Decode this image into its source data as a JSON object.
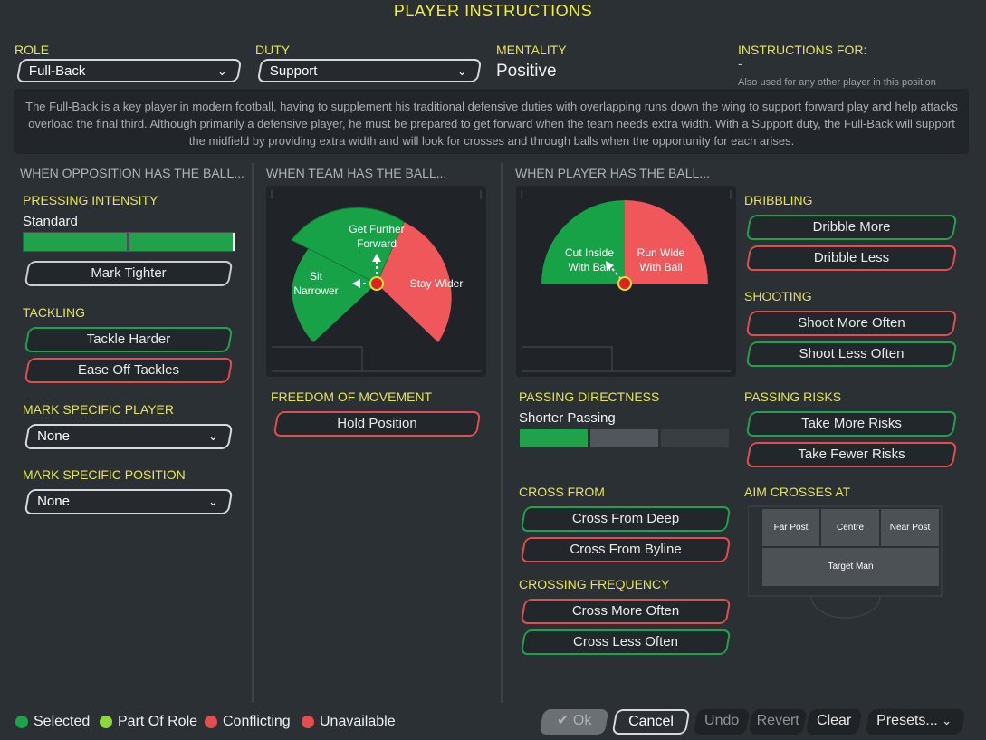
{
  "title": "PLAYER INSTRUCTIONS",
  "header": {
    "role_label": "ROLE",
    "role_value": "Full-Back",
    "duty_label": "DUTY",
    "duty_value": "Support",
    "mentality_label": "MENTALITY",
    "mentality_value": "Positive",
    "instructions_for_label": "INSTRUCTIONS FOR:",
    "instructions_for_value": "-",
    "instructions_for_note": "Also used for any other player in this position",
    "description": "The Full-Back is a key player in modern football, having to supplement his traditional defensive duties with overlapping runs down the wing to support forward play and help attacks overload the final third. Although primarily a defensive player, he must be prepared to get forward when the team needs extra width. With a Support duty, the Full-Back will support the midfield by providing extra width and will look for crosses and through balls when the opportunity for each arises."
  },
  "opposition": {
    "heading": "WHEN OPPOSITION HAS THE BALL...",
    "pressing_label": "PRESSING INTENSITY",
    "pressing_value": "Standard",
    "pressing_level": 1.0,
    "mark_tighter": "Mark Tighter",
    "tackling_label": "TACKLING",
    "tackle_harder": "Tackle Harder",
    "ease_off": "Ease Off Tackles",
    "mark_player_label": "MARK SPECIFIC PLAYER",
    "mark_player_value": "None",
    "mark_position_label": "MARK SPECIFIC POSITION",
    "mark_position_value": "None"
  },
  "team": {
    "heading": "WHEN TEAM HAS THE BALL...",
    "get_further": "Get Further Forward",
    "get_further_l1": "Get Further",
    "get_further_l2": "Forward",
    "sit_l1": "Sit",
    "sit_l2": "Narrower",
    "stay_wider": "Stay Wider",
    "freedom_label": "FREEDOM OF MOVEMENT",
    "hold_position": "Hold Position"
  },
  "player": {
    "heading": "WHEN PLAYER HAS THE BALL...",
    "cut_inside_l1": "Cut Inside",
    "cut_inside_l2": "With Ball",
    "run_wide_l1": "Run Wide",
    "run_wide_l2": "With Ball",
    "dribbling_label": "DRIBBLING",
    "dribble_more": "Dribble More",
    "dribble_less": "Dribble Less",
    "shooting_label": "SHOOTING",
    "shoot_more": "Shoot More Often",
    "shoot_less": "Shoot Less Often",
    "passing_dir_label": "PASSING DIRECTNESS",
    "passing_dir_value": "Shorter Passing",
    "passing_level": 1,
    "passing_risks_label": "PASSING RISKS",
    "take_more": "Take More Risks",
    "take_fewer": "Take Fewer Risks",
    "cross_from_label": "CROSS FROM",
    "cross_deep": "Cross From Deep",
    "cross_byline": "Cross From Byline",
    "aim_label": "AIM CROSSES AT",
    "far_post": "Far Post",
    "centre": "Centre",
    "near_post": "Near Post",
    "target_man": "Target Man",
    "crossing_freq_label": "CROSSING FREQUENCY",
    "cross_more": "Cross More Often",
    "cross_less": "Cross Less Often"
  },
  "legend": {
    "selected": "Selected",
    "part_of_role": "Part Of Role",
    "conflicting": "Conflicting",
    "unavailable": "Unavailable"
  },
  "footer": {
    "ok": "Ok",
    "cancel": "Cancel",
    "undo": "Undo",
    "revert": "Revert",
    "clear": "Clear",
    "presets": "Presets..."
  },
  "colors": {
    "accent": "#e6e35a",
    "selected": "#1fa24a",
    "part_of_role": "#8ed63a",
    "conflicting": "#e24d4d",
    "unavailable": "#e24d4d"
  }
}
